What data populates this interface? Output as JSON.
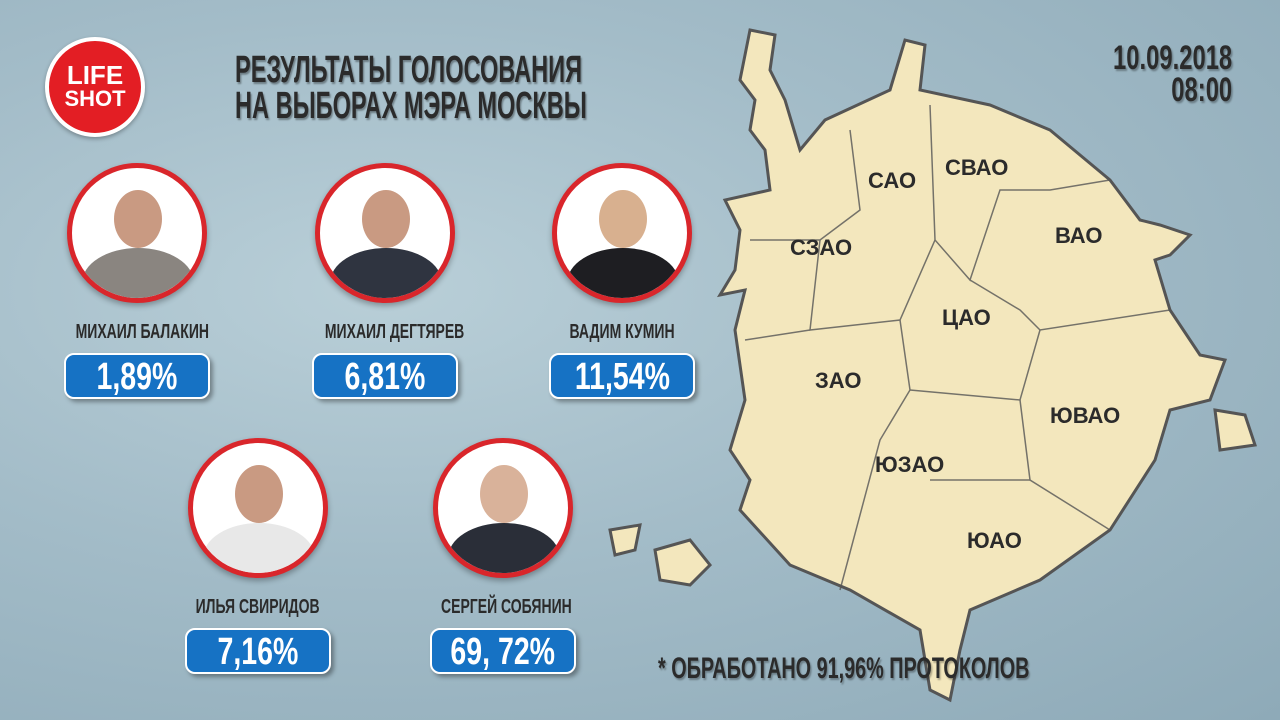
{
  "logo": {
    "line1": "LIFE",
    "line2": "SHOT"
  },
  "title": {
    "line1": "РЕЗУЛЬТАТЫ ГОЛОСОВАНИЯ",
    "line2": "НА ВЫБОРАХ МЭРА МОСКВЫ"
  },
  "date": {
    "day": "10.09.2018",
    "time": "08:00"
  },
  "candidates": [
    {
      "name": "МИХАИЛ БАЛАКИН",
      "percent": "1,89%"
    },
    {
      "name": "МИХАИЛ ДЕГТЯРЕВ",
      "percent": "6,81%"
    },
    {
      "name": "ВАДИМ КУМИН",
      "percent": "11,54%"
    },
    {
      "name": "ИЛЬЯ СВИРИДОВ",
      "percent": "7,16%"
    },
    {
      "name": "СЕРГЕЙ СОБЯНИН",
      "percent": "69, 72%"
    }
  ],
  "map": {
    "districts": [
      "САО",
      "СВАО",
      "СЗАО",
      "ВАО",
      "ЦАО",
      "ЗАО",
      "ЮВАО",
      "ЮЗАО",
      "ЮАО"
    ],
    "fill": "#f3e7bd",
    "border": "#555555"
  },
  "footnote": "* ОБРАБОТАНО 91,96% ПРОТОКОЛОВ",
  "colors": {
    "accent": "#1672c4",
    "frame": "#d9262b",
    "brand": "#e31e24"
  }
}
